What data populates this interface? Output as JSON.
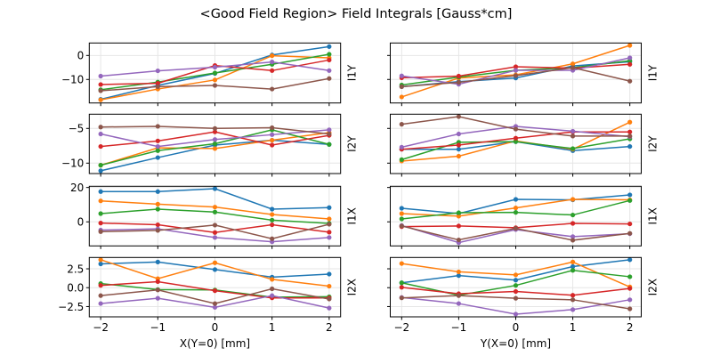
{
  "chart_data": {
    "type": "line",
    "title": "<Good Field Region> Field Integrals [Gauss*cm]",
    "x": [
      -2,
      -1,
      0,
      1,
      2
    ],
    "xlim": [
      -2.2,
      2.2
    ],
    "xticks": [
      -2,
      -1,
      0,
      1,
      2
    ],
    "xtick_labels": [
      "−2",
      "−1",
      "0",
      "1",
      "2"
    ],
    "grid": true,
    "colors": [
      "#1f77b4",
      "#ff7f0e",
      "#2ca02c",
      "#d62728",
      "#9467bd",
      "#8c564b"
    ],
    "columns": [
      {
        "xlabel": "X(Y=0) [mm]"
      },
      {
        "xlabel": "Y(X=0) [mm]"
      }
    ],
    "rows": [
      {
        "ylabel": "I1Y",
        "ylim": [
          -19.8,
          5.2
        ],
        "yticks": [
          0,
          -10
        ],
        "ytick_labels": [
          "0",
          "−10"
        ]
      },
      {
        "ylabel": "I2Y",
        "ylim": [
          -11.5,
          -2.95
        ],
        "yticks": [
          -5,
          -10
        ],
        "ytick_labels": [
          "−5",
          "−10"
        ]
      },
      {
        "ylabel": "I1X",
        "ylim": [
          -14,
          20.7
        ],
        "yticks": [
          20,
          0
        ],
        "ytick_labels": [
          "20",
          "0"
        ]
      },
      {
        "ylabel": "I2X",
        "ylim": [
          -3.86,
          4.0
        ],
        "yticks": [
          2.5,
          0,
          -2.5
        ],
        "ytick_labels": [
          "2.5",
          "0.0",
          "−2.5"
        ]
      }
    ],
    "panels": [
      {
        "row": 0,
        "col": 0,
        "series": [
          [
            -18.3,
            -12.5,
            -7.5,
            0.2,
            3.7
          ],
          [
            -18.5,
            -14,
            -10.2,
            -0.1,
            -1
          ],
          [
            -14.3,
            -11.1,
            -7.3,
            -3.7,
            0.5
          ],
          [
            -12.1,
            -11.6,
            -4.2,
            -6.3,
            -1.9
          ],
          [
            -8.6,
            -6.4,
            -4.9,
            -2.7,
            -6.3
          ],
          [
            -14.7,
            -13,
            -12.5,
            -14,
            -9.6
          ]
        ]
      },
      {
        "row": 0,
        "col": 1,
        "series": [
          [
            -13,
            -10.9,
            -9.4,
            -4.4,
            -2.6
          ],
          [
            -17.3,
            -9.4,
            -8.1,
            -3.5,
            4.2
          ],
          [
            -12.3,
            -9,
            -6.2,
            -5.1,
            -2.2
          ],
          [
            -9.3,
            -8.6,
            -4.7,
            -5.3,
            -3.7
          ],
          [
            -8.5,
            -12,
            -6.2,
            -6.2,
            -1
          ],
          [
            -13,
            -11.2,
            -8.4,
            -5.1,
            -10.7
          ]
        ]
      },
      {
        "row": 1,
        "col": 0,
        "series": [
          [
            -11.1,
            -9.2,
            -7.4,
            -6.7,
            -7.3
          ],
          [
            -10.3,
            -7.8,
            -7.9,
            -6.7,
            -5.6
          ],
          [
            -10.3,
            -8.2,
            -7.2,
            -5.2,
            -7.3
          ],
          [
            -7.6,
            -6.8,
            -5.5,
            -7.4,
            -6
          ],
          [
            -5.8,
            -7.6,
            -6.6,
            -5.9,
            -5.2
          ],
          [
            -4.8,
            -4.7,
            -5,
            -4.9,
            -5.8
          ]
        ]
      },
      {
        "row": 1,
        "col": 1,
        "series": [
          [
            -8,
            -8,
            -6.9,
            -8.2,
            -7.6
          ],
          [
            -9.7,
            -9,
            -6.8,
            -8,
            -4.1
          ],
          [
            -9.5,
            -7,
            -6.9,
            -7.9,
            -6.5
          ],
          [
            -8,
            -7.4,
            -6.4,
            -5.5,
            -5.5
          ],
          [
            -7.7,
            -5.8,
            -4.7,
            -5.4,
            -6.2
          ],
          [
            -4.4,
            -3.3,
            -5.1,
            -6.1,
            -6.1
          ]
        ]
      },
      {
        "row": 2,
        "col": 0,
        "series": [
          [
            17.6,
            17.6,
            19.3,
            7.4,
            8.3
          ],
          [
            12.2,
            10.3,
            8.6,
            4.3,
            1.7
          ],
          [
            4.8,
            7.4,
            5.7,
            1,
            -0.9
          ],
          [
            -0.7,
            -1.7,
            -6.2,
            -1.7,
            -6
          ],
          [
            -4.8,
            -4.1,
            -9.1,
            -11.6,
            -9.1
          ],
          [
            -5.7,
            -5,
            -1.9,
            -9.8,
            -1.4
          ]
        ]
      },
      {
        "row": 2,
        "col": 1,
        "series": [
          [
            7.9,
            4.8,
            13.1,
            12.8,
            15.7
          ],
          [
            4.8,
            3.3,
            8.1,
            13.1,
            12.8
          ],
          [
            1.7,
            5.3,
            5.5,
            4,
            12.4
          ],
          [
            -2.8,
            -2.4,
            -3.4,
            -0.9,
            -1.2
          ],
          [
            -2.1,
            -12.1,
            -4.5,
            -8.6,
            -6.9
          ],
          [
            -2.4,
            -10.5,
            -3.8,
            -10.7,
            -6.7
          ]
        ]
      },
      {
        "row": 3,
        "col": 0,
        "series": [
          [
            3.15,
            3.4,
            2.4,
            1.4,
            1.8
          ],
          [
            3.7,
            1.2,
            3.3,
            1.1,
            0.2
          ],
          [
            0.55,
            -0.25,
            -0.3,
            -1.25,
            -1.2
          ],
          [
            0.3,
            0.8,
            -0.4,
            -1.35,
            -1.35
          ],
          [
            -2.1,
            -1.4,
            -2.6,
            -1.05,
            -2.7
          ],
          [
            -1.05,
            -0.3,
            -2.1,
            -0.15,
            -1.5
          ]
        ]
      },
      {
        "row": 3,
        "col": 1,
        "series": [
          [
            0.65,
            1.6,
            1.0,
            2.8,
            3.7
          ],
          [
            3.2,
            2.1,
            1.7,
            3.4,
            0.1
          ],
          [
            0.65,
            -1,
            0.3,
            2.3,
            1.45
          ],
          [
            0.05,
            -0.8,
            -0.5,
            -1,
            -0.1
          ],
          [
            -1.3,
            -2.1,
            -3.5,
            -2.9,
            -1.6
          ],
          [
            -1.35,
            -1.05,
            -1.4,
            -1.6,
            -2.8
          ]
        ]
      }
    ]
  }
}
